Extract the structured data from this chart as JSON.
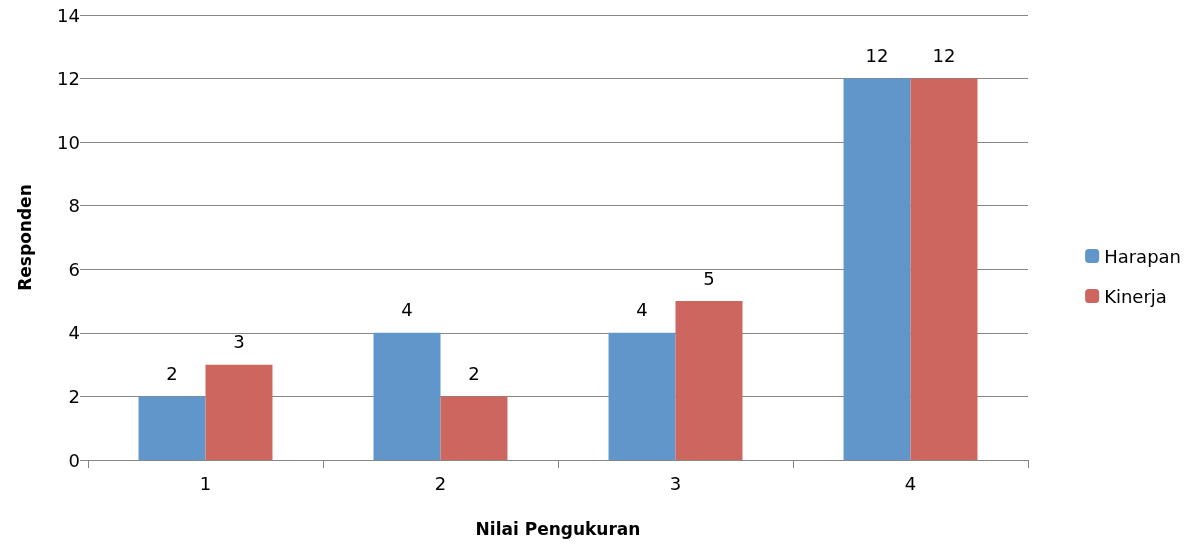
{
  "chart_data": {
    "type": "bar",
    "xlabel": "Nilai Pengukuran",
    "ylabel": "Responden",
    "categories": [
      "1",
      "2",
      "3",
      "4"
    ],
    "series": [
      {
        "name": "Harapan",
        "color": "#6096c9",
        "values": [
          2,
          4,
          4,
          12
        ]
      },
      {
        "name": "Kinerja",
        "color": "#cd665f",
        "values": [
          3,
          2,
          5,
          12
        ]
      }
    ],
    "ylim": [
      0,
      14
    ],
    "yticks": [
      0,
      2,
      4,
      6,
      8,
      10,
      12,
      14
    ],
    "grid": "y",
    "legend": "right",
    "data_labels": true
  }
}
